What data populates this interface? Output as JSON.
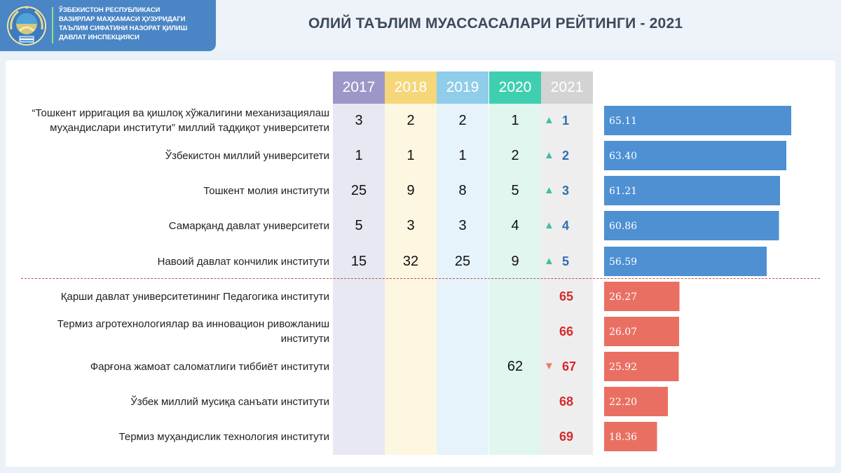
{
  "header": {
    "org_lines": [
      "ЎЗБЕКИСТОН РЕСПУБЛИКАСИ",
      "ВАЗИРЛАР МАҲКАМАСИ ҲУЗУРИДАГИ",
      "ТАЪЛИМ СИФАТИНИ НАЗОРАТ ҚИЛИШ",
      "ДАВЛАТ ИНСПЕКЦИЯСИ"
    ],
    "title": "ОЛИЙ ТАЪЛИМ МУАССАСАЛАРИ РЕЙТИНГИ - 2021"
  },
  "colors": {
    "y2017": "#9b98c9",
    "y2018": "#f5d77a",
    "y2019": "#8fcdea",
    "y2020": "#3fcfb0",
    "y2021": "#d3d3d3",
    "band2017": "#e8e8f2",
    "band2018": "#fdf6e0",
    "band2019": "#e6f3fa",
    "band2020": "#e0f6ef",
    "band2021": "#eeeeee",
    "top_bar": "#4e90d2",
    "bottom_bar": "#ea6f63",
    "up_arrow": "#3fbfa6",
    "down_arrow": "#ee7a6c",
    "top_rank": "#2f6fb0",
    "bottom_rank": "#d42b2b"
  },
  "chart_data": {
    "type": "bar",
    "orientation": "horizontal",
    "columns": [
      "2017",
      "2018",
      "2019",
      "2020",
      "2021"
    ],
    "rows": [
      {
        "lines": [
          "“Тошкент ирригация ва қишлоқ хўжалигини механизациялаш",
          "муҳандислари институти” миллий тадқиқот университети"
        ],
        "r2017": "3",
        "r2018": "2",
        "r2019": "2",
        "r2020": "1",
        "r2021": "1",
        "trend": "up",
        "score": 65.11,
        "score_label": "65.11",
        "group": "top"
      },
      {
        "lines": [
          "Ўзбекистон миллий университети"
        ],
        "r2017": "1",
        "r2018": "1",
        "r2019": "1",
        "r2020": "2",
        "r2021": "2",
        "trend": "up",
        "score": 63.4,
        "score_label": "63.40",
        "group": "top"
      },
      {
        "lines": [
          "Тошкент молия институти"
        ],
        "r2017": "25",
        "r2018": "9",
        "r2019": "8",
        "r2020": "5",
        "r2021": "3",
        "trend": "up",
        "score": 61.21,
        "score_label": "61.21",
        "group": "top"
      },
      {
        "lines": [
          "Самарқанд давлат университети"
        ],
        "r2017": "5",
        "r2018": "3",
        "r2019": "3",
        "r2020": "4",
        "r2021": "4",
        "trend": "up",
        "score": 60.86,
        "score_label": "60.86",
        "group": "top"
      },
      {
        "lines": [
          "Навоий давлат кончилик институти"
        ],
        "r2017": "15",
        "r2018": "32",
        "r2019": "25",
        "r2020": "9",
        "r2021": "5",
        "trend": "up",
        "score": 56.59,
        "score_label": "56.59",
        "group": "top"
      },
      {
        "lines": [
          "Қарши давлат университетининг Педагогика институти"
        ],
        "r2017": "",
        "r2018": "",
        "r2019": "",
        "r2020": "",
        "r2021": "65",
        "trend": "",
        "score": 26.27,
        "score_label": "26.27",
        "group": "bottom"
      },
      {
        "lines": [
          "Термиз агротехнологиялар ва инновацион ривожланиш",
          "институти"
        ],
        "r2017": "",
        "r2018": "",
        "r2019": "",
        "r2020": "",
        "r2021": "66",
        "trend": "",
        "score": 26.07,
        "score_label": "26.07",
        "group": "bottom"
      },
      {
        "lines": [
          "Фарғона жамоат саломатлиги тиббиёт институти"
        ],
        "r2017": "",
        "r2018": "",
        "r2019": "",
        "r2020": "62",
        "r2021": "67",
        "trend": "down",
        "score": 25.92,
        "score_label": "25.92",
        "group": "bottom"
      },
      {
        "lines": [
          "Ўзбек миллий мусиқа санъати институти"
        ],
        "r2017": "",
        "r2018": "",
        "r2019": "",
        "r2020": "",
        "r2021": "68",
        "trend": "",
        "score": 22.2,
        "score_label": "22.20",
        "group": "bottom"
      },
      {
        "lines": [
          "Термиз муҳандислик технология институти"
        ],
        "r2017": "",
        "r2018": "",
        "r2019": "",
        "r2020": "",
        "r2021": "69",
        "trend": "",
        "score": 18.36,
        "score_label": "18.36",
        "group": "bottom"
      }
    ],
    "xlim": [
      0,
      72
    ],
    "grid": false
  }
}
